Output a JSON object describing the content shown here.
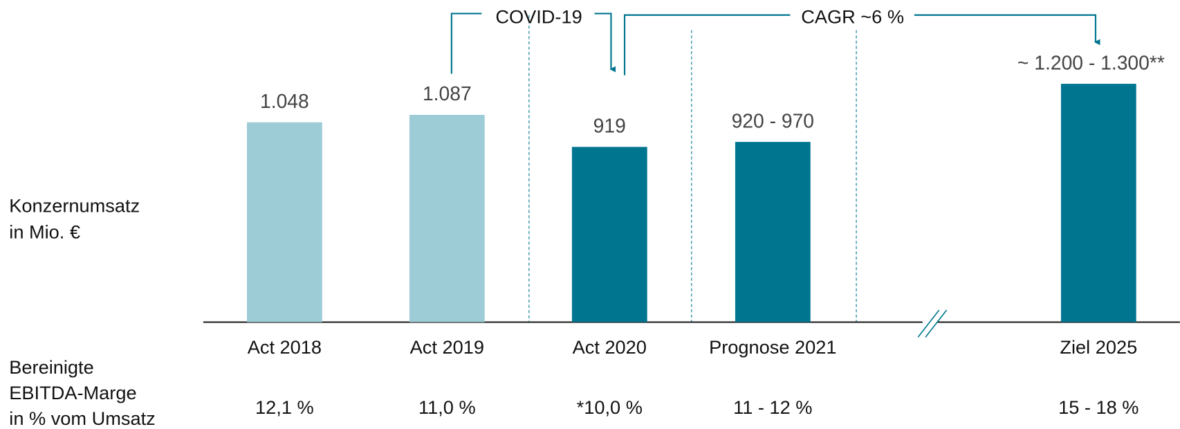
{
  "chart_data": {
    "type": "bar",
    "categories": [
      "Act 2018",
      "Act 2019",
      "Act 2020",
      "Prognose 2021",
      "Ziel 2025"
    ],
    "values": [
      1048,
      1087,
      919,
      945,
      1250
    ],
    "value_labels": [
      "1.048",
      "1.087",
      "919",
      "920 - 970",
      "~ 1.200 - 1.300**"
    ],
    "colors": [
      "#9dcbd6",
      "#9dcbd6",
      "#00758f",
      "#00758f",
      "#00758f"
    ],
    "ylim": [
      0,
      1650
    ],
    "y_label": [
      "Konzernumsatz",
      "in Mio. €"
    ],
    "margin_label": [
      "Bereinigte",
      "EBITDA-Marge",
      "in % vom Umsatz"
    ],
    "margins": [
      "12,1 %",
      "11,0 %",
      "*10,0 %",
      "11 - 12 %",
      "15 - 18 %"
    ],
    "annotations": [
      "COVID-19",
      "CAGR ~6 %"
    ]
  }
}
